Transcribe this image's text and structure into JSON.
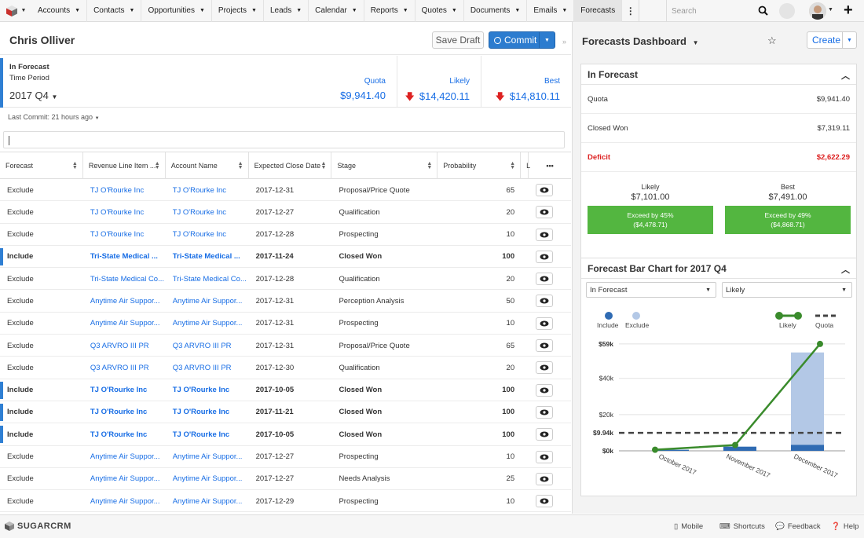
{
  "nav": {
    "items": [
      "Accounts",
      "Contacts",
      "Opportunities",
      "Projects",
      "Leads",
      "Calendar",
      "Reports",
      "Quotes",
      "Documents",
      "Emails",
      "Forecasts"
    ],
    "active": "Forecasts",
    "search_placeholder": "Search"
  },
  "record": {
    "name": "Chris Olliver",
    "save_draft": "Save Draft",
    "commit": "Commit"
  },
  "summary": {
    "label": "In Forecast",
    "time_period_label": "Time Period",
    "time_period": "2017 Q4",
    "quota_label": "Quota",
    "quota": "$9,941.40",
    "likely_label": "Likely",
    "likely": "$14,420.11",
    "best_label": "Best",
    "best": "$14,810.11",
    "last_commit": "Last Commit: 21 hours ago"
  },
  "table": {
    "headers": [
      "Forecast",
      "Revenue Line Item ...",
      "Account Name",
      "Expected Close Date",
      "Stage",
      "Probability",
      "L"
    ],
    "rows": [
      {
        "forecast": "Exclude",
        "rli": "TJ O'Rourke Inc",
        "account": "TJ O'Rourke Inc",
        "date": "2017-12-31",
        "stage": "Proposal/Price Quote",
        "prob": "65",
        "inc": false
      },
      {
        "forecast": "Exclude",
        "rli": "TJ O'Rourke Inc",
        "account": "TJ O'Rourke Inc",
        "date": "2017-12-27",
        "stage": "Qualification",
        "prob": "20",
        "inc": false
      },
      {
        "forecast": "Exclude",
        "rli": "TJ O'Rourke Inc",
        "account": "TJ O'Rourke Inc",
        "date": "2017-12-28",
        "stage": "Prospecting",
        "prob": "10",
        "inc": false
      },
      {
        "forecast": "Include",
        "rli": "Tri-State Medical ...",
        "account": "Tri-State Medical ...",
        "date": "2017-11-24",
        "stage": "Closed Won",
        "prob": "100",
        "inc": true
      },
      {
        "forecast": "Exclude",
        "rli": "Tri-State Medical Co...",
        "account": "Tri-State Medical Co...",
        "date": "2017-12-28",
        "stage": "Qualification",
        "prob": "20",
        "inc": false
      },
      {
        "forecast": "Exclude",
        "rli": "Anytime Air Suppor...",
        "account": "Anytime Air Suppor...",
        "date": "2017-12-31",
        "stage": "Perception Analysis",
        "prob": "50",
        "inc": false
      },
      {
        "forecast": "Exclude",
        "rli": "Anytime Air Suppor...",
        "account": "Anytime Air Suppor...",
        "date": "2017-12-31",
        "stage": "Prospecting",
        "prob": "10",
        "inc": false
      },
      {
        "forecast": "Exclude",
        "rli": "Q3 ARVRO III PR",
        "account": "Q3 ARVRO III PR",
        "date": "2017-12-31",
        "stage": "Proposal/Price Quote",
        "prob": "65",
        "inc": false
      },
      {
        "forecast": "Exclude",
        "rli": "Q3 ARVRO III PR",
        "account": "Q3 ARVRO III PR",
        "date": "2017-12-30",
        "stage": "Qualification",
        "prob": "20",
        "inc": false
      },
      {
        "forecast": "Include",
        "rli": "TJ O'Rourke Inc",
        "account": "TJ O'Rourke Inc",
        "date": "2017-10-05",
        "stage": "Closed Won",
        "prob": "100",
        "inc": true
      },
      {
        "forecast": "Include",
        "rli": "TJ O'Rourke Inc",
        "account": "TJ O'Rourke Inc",
        "date": "2017-11-21",
        "stage": "Closed Won",
        "prob": "100",
        "inc": true
      },
      {
        "forecast": "Include",
        "rli": "TJ O'Rourke Inc",
        "account": "TJ O'Rourke Inc",
        "date": "2017-10-05",
        "stage": "Closed Won",
        "prob": "100",
        "inc": true
      },
      {
        "forecast": "Exclude",
        "rli": "Anytime Air Suppor...",
        "account": "Anytime Air Suppor...",
        "date": "2017-12-27",
        "stage": "Prospecting",
        "prob": "10",
        "inc": false
      },
      {
        "forecast": "Exclude",
        "rli": "Anytime Air Suppor...",
        "account": "Anytime Air Suppor...",
        "date": "2017-12-27",
        "stage": "Needs Analysis",
        "prob": "25",
        "inc": false
      },
      {
        "forecast": "Exclude",
        "rli": "Anytime Air Suppor...",
        "account": "Anytime Air Suppor...",
        "date": "2017-12-29",
        "stage": "Prospecting",
        "prob": "10",
        "inc": false
      }
    ]
  },
  "dashboard": {
    "title": "Forecasts Dashboard",
    "create": "Create",
    "in_forecast": {
      "title": "In Forecast",
      "quota_label": "Quota",
      "quota": "$9,941.40",
      "closed_won_label": "Closed Won",
      "closed_won": "$7,319.11",
      "deficit_label": "Deficit",
      "deficit": "$2,622.29",
      "likely_label": "Likely",
      "likely": "$7,101.00",
      "best_label": "Best",
      "best": "$7,491.00",
      "likely_exceed": "Exceed by 45%",
      "likely_exceed_amt": "($4,478.71)",
      "best_exceed": "Exceed by 49%",
      "best_exceed_amt": "($4,868.71)"
    },
    "chart_panel": {
      "title": "Forecast Bar Chart for 2017 Q4",
      "filter1": "In Forecast",
      "filter2": "Likely"
    }
  },
  "chart_data": {
    "type": "bar",
    "categories": [
      "October 2017",
      "November 2017",
      "December 2017"
    ],
    "series": [
      {
        "name": "Include",
        "values": [
          600,
          2300,
          3300
        ],
        "color": "#2f6bb3"
      },
      {
        "name": "Exclude",
        "values": [
          0,
          0,
          51000
        ],
        "color": "#b3c8e6"
      },
      {
        "name": "Likely",
        "type": "line",
        "values": [
          600,
          3200,
          59000
        ],
        "color": "#3a8b2c"
      },
      {
        "name": "Quota",
        "type": "dashed",
        "value": 9940,
        "color": "#444444"
      }
    ],
    "ytick_labels": [
      "$0k",
      "$9.94k",
      "$20k",
      "$40k",
      "$59k"
    ],
    "yticks": [
      0,
      9940,
      20000,
      40000,
      59000
    ],
    "ylim": [
      0,
      62000
    ],
    "legend": "top"
  },
  "footer": {
    "brand": "SUGARCRM",
    "mobile": "Mobile",
    "shortcuts": "Shortcuts",
    "feedback": "Feedback",
    "help": "Help"
  }
}
